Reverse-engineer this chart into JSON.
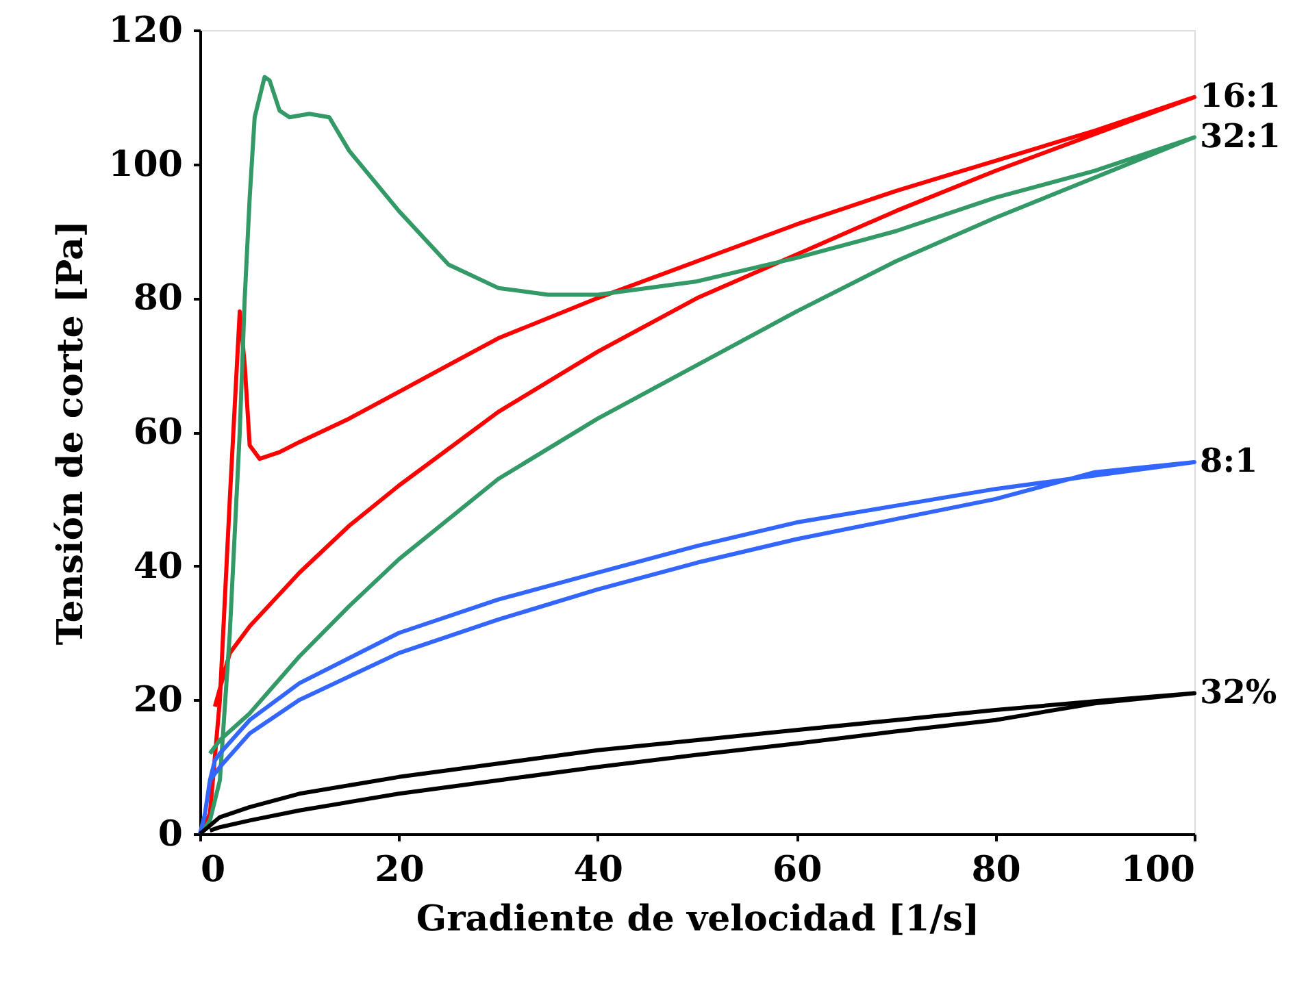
{
  "chart_data": {
    "type": "line",
    "xlabel": "Gradiente de velocidad [1/s]",
    "ylabel": "Tensión de corte [Pa]",
    "xlim": [
      0,
      100
    ],
    "ylim": [
      0,
      120
    ],
    "xticks": [
      0,
      20,
      40,
      60,
      80,
      100
    ],
    "yticks": [
      0,
      20,
      40,
      60,
      80,
      100,
      120
    ],
    "grid": false,
    "legend": false,
    "marker": "none",
    "line_style": "solid",
    "series": [
      {
        "name": "16:1",
        "color": "#ff0000",
        "x": [
          0,
          1,
          2,
          3,
          4,
          4.5,
          5,
          6,
          8,
          10,
          15,
          20,
          25,
          30,
          40,
          50,
          60,
          70,
          80,
          90,
          100,
          90,
          80,
          70,
          60,
          50,
          40,
          30,
          20,
          15,
          10,
          5,
          3,
          1.5
        ],
        "values": [
          0,
          3,
          20,
          50,
          78,
          70,
          58,
          56,
          57,
          58.5,
          62,
          66,
          70,
          74,
          80,
          85.5,
          91,
          96,
          100.5,
          105,
          110,
          104.5,
          99,
          93,
          86.5,
          80,
          72,
          63,
          52,
          46,
          39,
          31,
          27,
          19
        ]
      },
      {
        "name": "32:1",
        "color": "#339966",
        "x": [
          0,
          1,
          2,
          3,
          4,
          4.5,
          5,
          5.5,
          6.5,
          7,
          8,
          9,
          11,
          13,
          15,
          20,
          25,
          30,
          35,
          40,
          50,
          60,
          70,
          80,
          90,
          100,
          90,
          80,
          70,
          60,
          50,
          40,
          30,
          20,
          15,
          10,
          5,
          2,
          1
        ],
        "values": [
          0,
          2,
          8,
          30,
          60,
          80,
          95,
          107,
          113,
          112.5,
          108,
          107,
          107.5,
          107,
          102,
          93,
          85,
          81.5,
          80.5,
          80.5,
          82.5,
          86,
          90,
          95,
          99,
          104,
          98,
          92,
          85.5,
          78,
          70,
          62,
          53,
          41,
          34,
          26.5,
          18,
          14,
          12
        ]
      },
      {
        "name": "8:1",
        "color": "#3366ff",
        "x": [
          0,
          0.5,
          1,
          1.5,
          2,
          5,
          10,
          20,
          30,
          40,
          50,
          60,
          70,
          80,
          90,
          100,
          90,
          80,
          70,
          60,
          50,
          40,
          30,
          20,
          10,
          5,
          2,
          1
        ],
        "values": [
          0,
          3,
          8,
          11,
          12,
          17,
          22.5,
          30,
          35,
          39,
          43,
          46.5,
          49,
          51.5,
          53.5,
          55.5,
          54,
          50,
          47,
          44,
          40.5,
          36.5,
          32,
          27,
          20,
          15,
          10,
          8
        ]
      },
      {
        "name": "32%",
        "color": "#000000",
        "x": [
          0,
          2,
          5,
          10,
          20,
          30,
          40,
          50,
          60,
          70,
          80,
          90,
          100,
          90,
          80,
          70,
          60,
          50,
          40,
          30,
          20,
          10,
          5,
          2,
          1
        ],
        "values": [
          0,
          2.5,
          4,
          6,
          8.5,
          10.5,
          12.5,
          14,
          15.5,
          17,
          18.5,
          19.8,
          21,
          19.5,
          17,
          15.3,
          13.5,
          11.8,
          10,
          8,
          6,
          3.5,
          2,
          1,
          0.5
        ]
      }
    ]
  }
}
